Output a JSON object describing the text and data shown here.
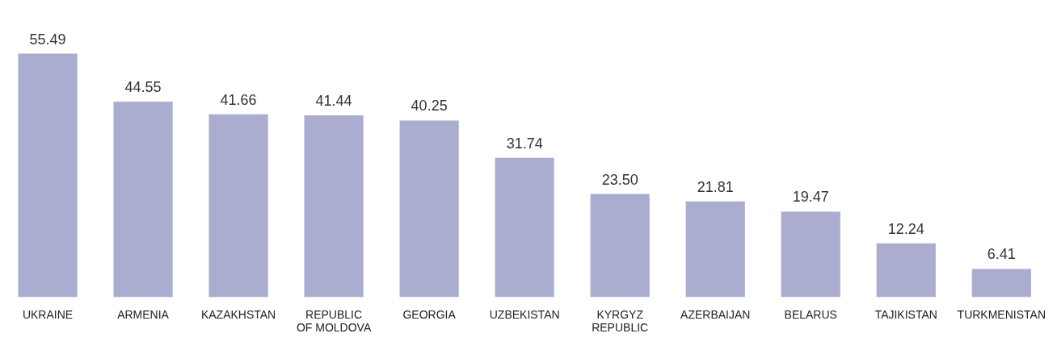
{
  "chart_data": {
    "type": "bar",
    "categories": [
      "UKRAINE",
      "ARMENIA",
      "KAZAKHSTAN",
      "REPUBLIC OF MOLDOVA",
      "GEORGIA",
      "UZBEKISTAN",
      "KYRGYZ REPUBLIC",
      "AZERBAIJAN",
      "BELARUS",
      "TAJIKISTAN",
      "TURKMENISTAN"
    ],
    "values": [
      55.49,
      44.55,
      41.66,
      41.44,
      40.25,
      31.74,
      23.5,
      21.81,
      19.47,
      12.24,
      6.41
    ],
    "value_labels": [
      "55.49",
      "44.55",
      "41.66",
      "41.44",
      "40.25",
      "31.74",
      "23.50",
      "21.81",
      "19.47",
      "12.24",
      "6.41"
    ],
    "color": "#aaadd0",
    "grid": false,
    "legend": false
  }
}
